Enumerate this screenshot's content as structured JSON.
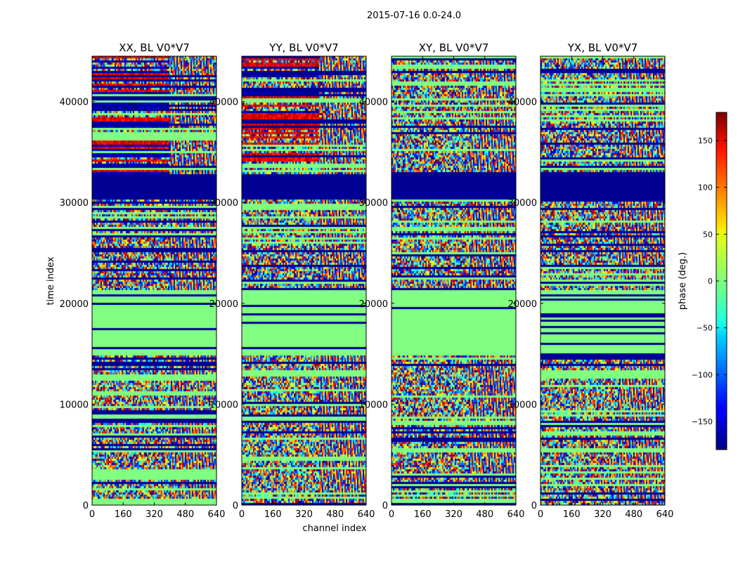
{
  "suptitle": "2015-07-16 0.0-24.0",
  "chart_data": {
    "type": "heatmap",
    "panels": [
      {
        "title": "XX, BL V0*V7"
      },
      {
        "title": "YY, BL V0*V7"
      },
      {
        "title": "XY, BL V0*V7"
      },
      {
        "title": "YX, BL V0*V7"
      }
    ],
    "xlabel": "channel index",
    "ylabel": "time index",
    "x_ticks": [
      0,
      160,
      320,
      480,
      640
    ],
    "x_tick_labels": [
      "0",
      "160",
      "320",
      "480",
      "640"
    ],
    "xlim": [
      0,
      640
    ],
    "y_ticks": [
      0,
      10000,
      20000,
      30000,
      40000
    ],
    "y_tick_labels": [
      "0",
      "10000",
      "20000",
      "30000",
      "40000"
    ],
    "ylim": [
      0,
      44500
    ],
    "colorbar": {
      "label": "phase (deg.)",
      "range": [
        -180,
        180
      ],
      "ticks": [
        -150,
        -100,
        -50,
        0,
        50,
        100,
        150
      ],
      "tick_labels": [
        "−150",
        "−100",
        "−50",
        "0",
        "50",
        "100",
        "150"
      ],
      "colormap": "jet"
    },
    "features": {
      "flat_band_time_range": [
        15000,
        21500
      ],
      "saturated_band_time_range": [
        30500,
        33000
      ],
      "channel_split": 390
    }
  }
}
